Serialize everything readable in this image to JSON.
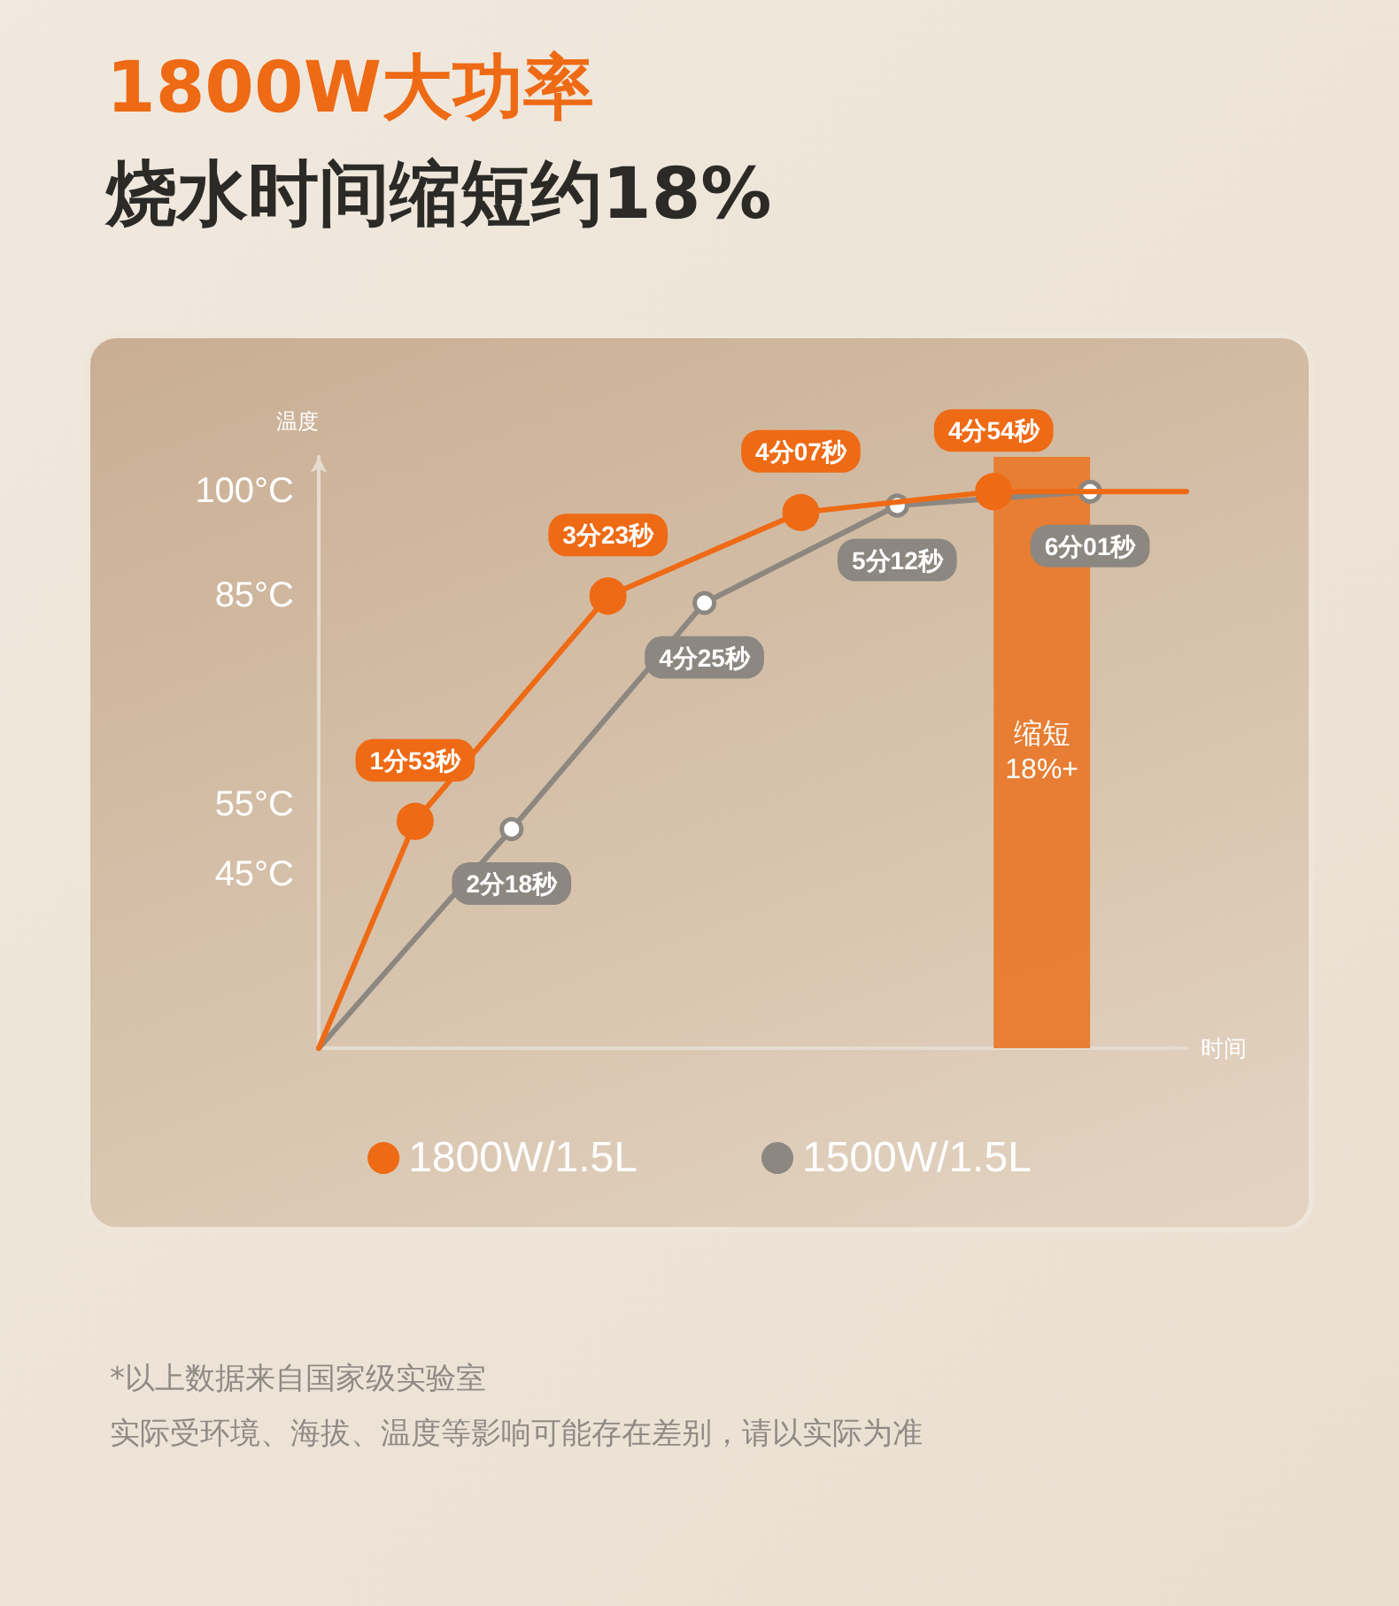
{
  "chart_data": {
    "type": "line",
    "title": "1800W大功率",
    "subtitle": "烧水时间缩短约18%",
    "xlabel": "时间",
    "ylabel": "温度",
    "categories": [
      null,
      "1分53秒",
      "2分18秒",
      "3分23秒",
      "4分25秒",
      "4分07秒",
      "5分12秒",
      "4分54秒",
      "6分01秒",
      null
    ],
    "ylim": [
      20,
      105
    ],
    "yticks": [
      {
        "value": 45,
        "label": "45°C"
      },
      {
        "value": 55,
        "label": "55°C"
      },
      {
        "value": 85,
        "label": "85°C"
      },
      {
        "value": 100,
        "label": "100°C"
      }
    ],
    "tick_labels": "y",
    "grid": false,
    "legend": "bottom",
    "marker": "circle",
    "line_style": "solid",
    "series": [
      {
        "name": "1800W/1.5L",
        "color": "#ee6a14",
        "values": [
          20,
          52.6,
          null,
          85,
          null,
          97,
          null,
          100,
          null,
          100
        ]
      },
      {
        "name": "1500W/1.5L",
        "color": "#8c8780",
        "values": [
          20,
          null,
          51.5,
          null,
          84,
          null,
          98,
          null,
          100,
          null
        ]
      }
    ],
    "bands": [
      {
        "axis": "x",
        "from": "4分54秒",
        "to": "6分01秒",
        "label": "缩短\n18%+",
        "color": "#e87a2c"
      }
    ],
    "annotations": [
      "*以上数据来自国家级实验室",
      "实际受环境、海拔、温度等影响可能存在差别，请以实际为准"
    ]
  }
}
